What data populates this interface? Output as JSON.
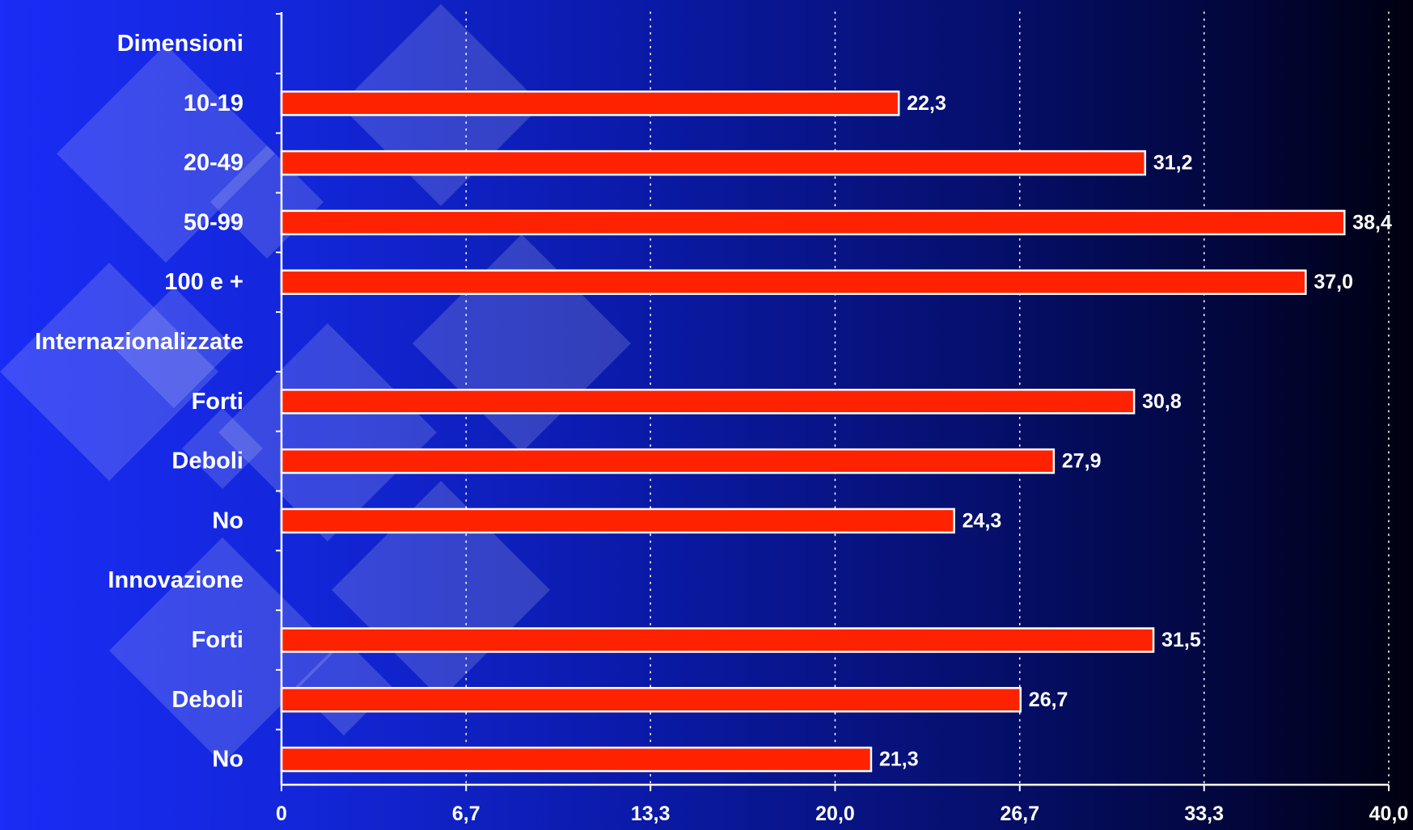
{
  "chart_data": {
    "type": "bar",
    "orientation": "horizontal",
    "categories": [
      "Dimensioni",
      "10-19",
      "20-49",
      "50-99",
      "100 e +",
      "Internazionalizzate",
      "Forti",
      "Deboli",
      "No",
      "Innovazione",
      "Forti",
      "Deboli",
      "No"
    ],
    "values": [
      null,
      22.3,
      31.2,
      38.4,
      37.0,
      null,
      30.8,
      27.9,
      24.3,
      null,
      31.5,
      26.7,
      21.3
    ],
    "value_labels": [
      "",
      "22,3",
      "31,2",
      "38,4",
      "37,0",
      "",
      "30,8",
      "27,9",
      "24,3",
      "",
      "31,5",
      "26,7",
      "21,3"
    ],
    "xlim": [
      0,
      40
    ],
    "x_ticks": [
      0,
      6.67,
      13.33,
      20,
      26.67,
      33.33,
      40
    ],
    "x_tick_labels": [
      "0",
      "6,7",
      "13,3",
      "20,0",
      "26,7",
      "33,3",
      "40,0"
    ],
    "grid": "vertical dotted",
    "bar_color": "#ff2200",
    "bar_edge_color": "#ffffff",
    "background_colors": [
      "#1a2cf5",
      "#000010"
    ]
  }
}
